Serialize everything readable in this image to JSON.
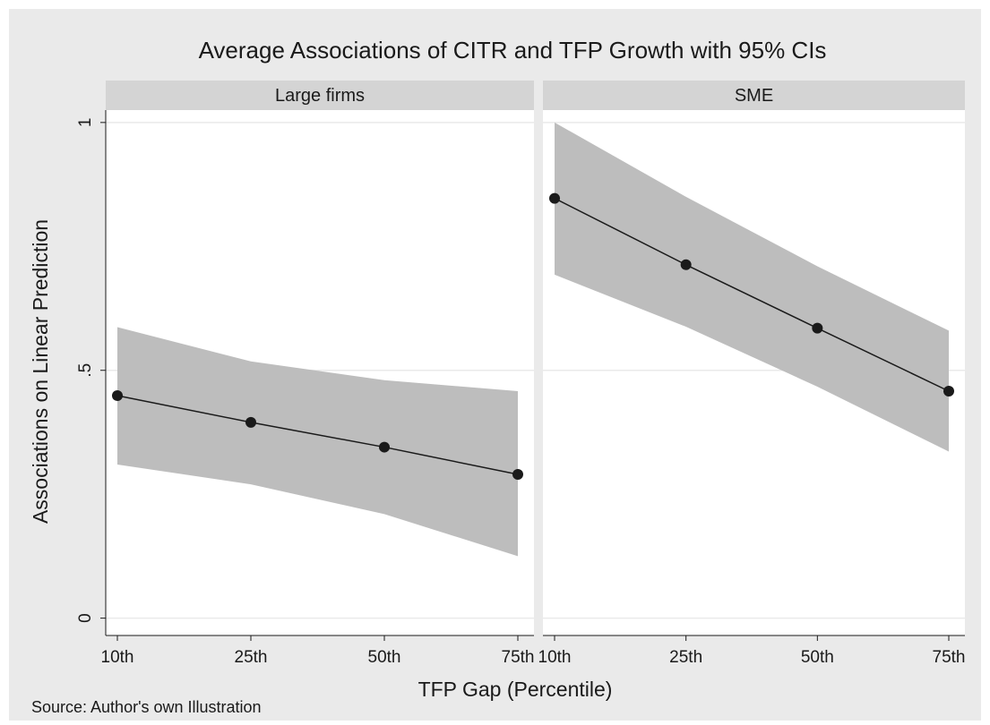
{
  "title": "Average Associations of CITR and TFP Growth with 95% CIs",
  "x_label": "TFP Gap (Percentile)",
  "y_label": "Associations on Linear Prediction",
  "source": "Source: Author's own Illustration",
  "chart_data": [
    {
      "type": "line",
      "title": "Large firms",
      "categories": [
        "10th",
        "25th",
        "50th",
        "75th"
      ],
      "values": [
        0.449,
        0.395,
        0.345,
        0.29
      ],
      "lower": [
        0.31,
        0.27,
        0.21,
        0.125
      ],
      "upper": [
        0.587,
        0.518,
        0.48,
        0.458
      ],
      "color": "#1a1a1a",
      "band_color": "#bdbdbd",
      "ylim": [
        -0.035,
        1.025
      ],
      "yticks": [
        0,
        {
          "value": 0.5,
          "label": ".5"
        },
        1
      ],
      "grid": true
    },
    {
      "type": "line",
      "title": "SME",
      "categories": [
        "10th",
        "25th",
        "50th",
        "75th"
      ],
      "values": [
        0.847,
        0.713,
        0.585,
        0.458
      ],
      "lower": [
        0.693,
        0.588,
        0.467,
        0.336
      ],
      "upper": [
        1.0,
        0.85,
        0.71,
        0.58
      ],
      "color": "#1a1a1a",
      "band_color": "#bdbdbd",
      "ylim": [
        -0.035,
        1.025
      ],
      "yticks": [
        0,
        {
          "value": 0.5,
          "label": ".5"
        },
        1
      ],
      "grid": true
    }
  ]
}
